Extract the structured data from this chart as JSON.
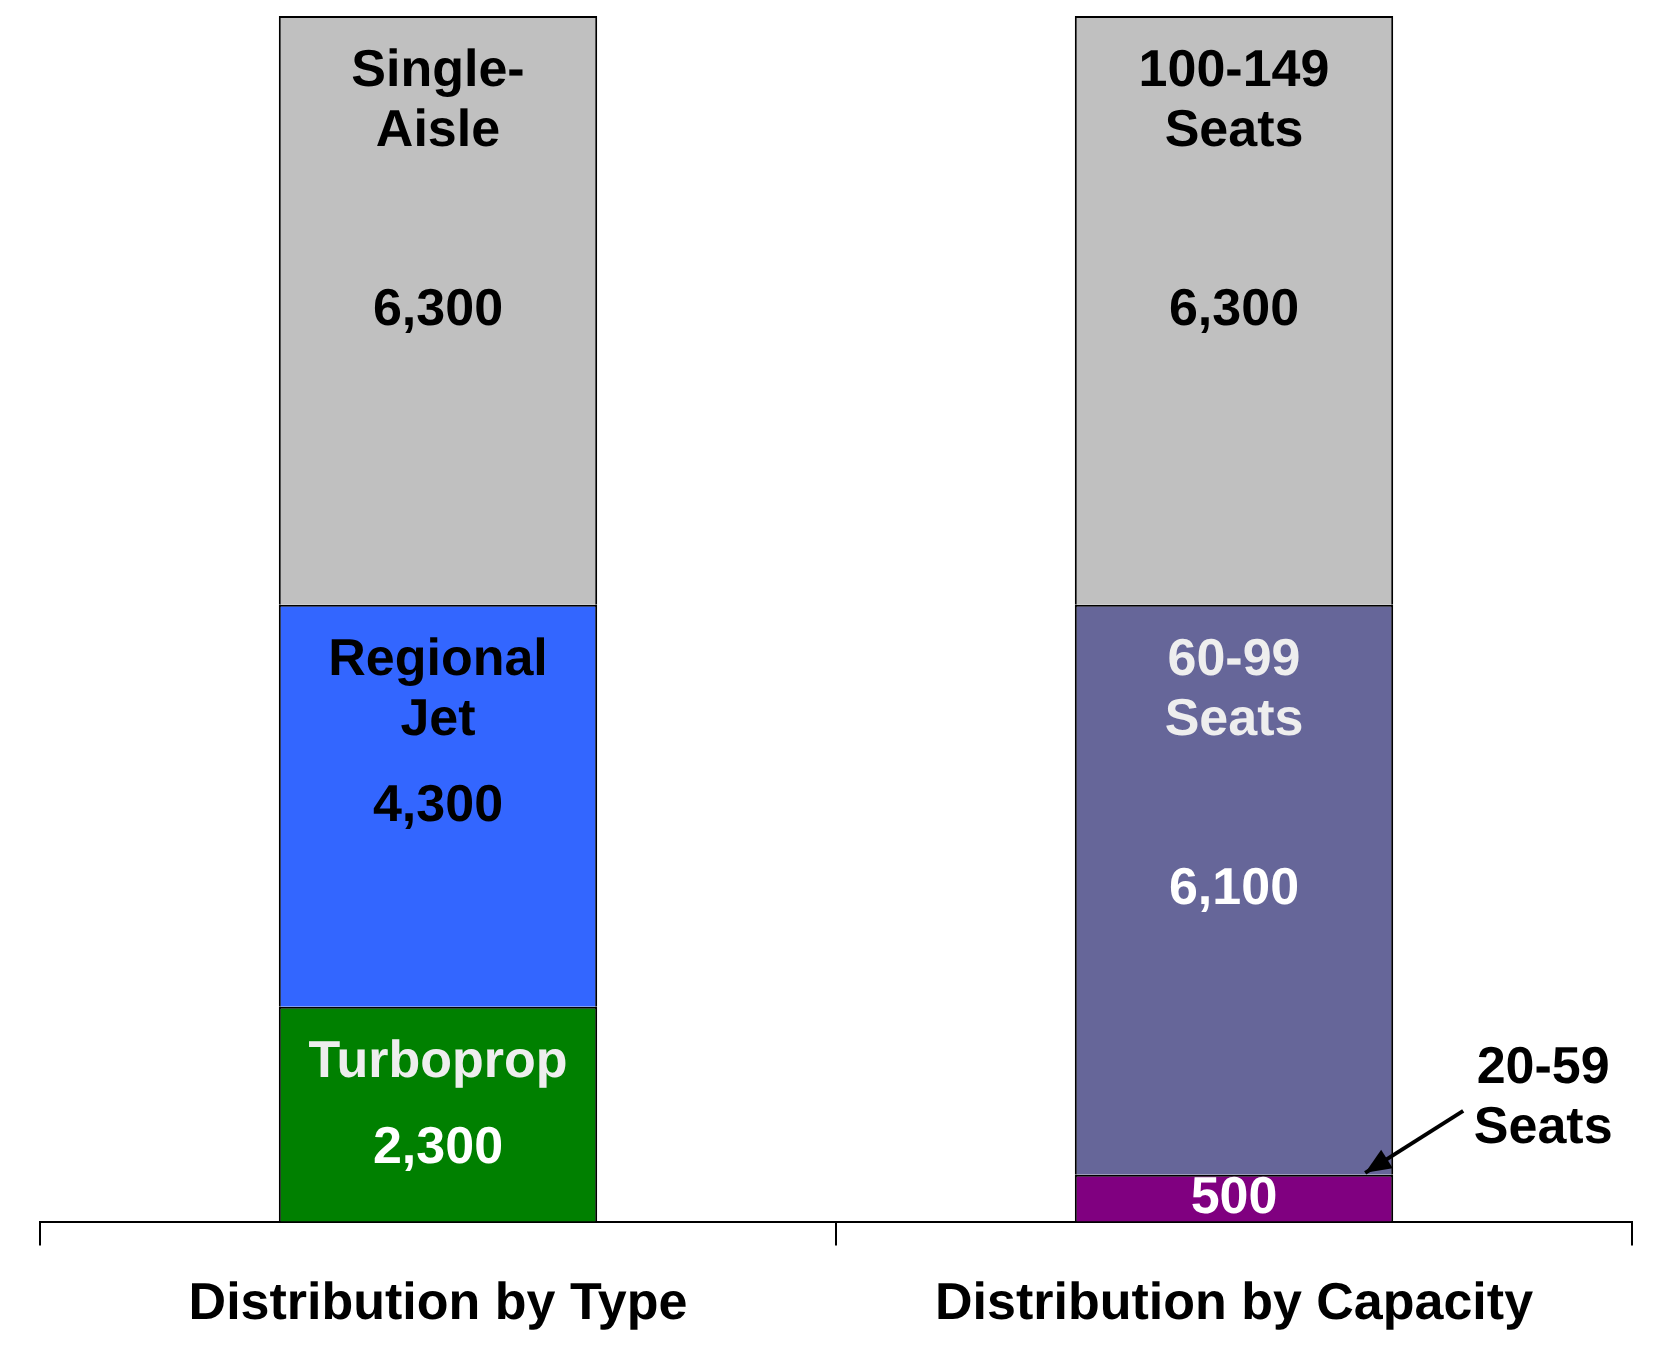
{
  "chart_data": {
    "type": "bar",
    "stacked": true,
    "categories": [
      "Distribution by Type",
      "Distribution by Capacity"
    ],
    "series": [
      {
        "colors": [
          "#008000",
          "#800080"
        ],
        "values": [
          2300,
          500
        ],
        "value_labels": [
          "2,300",
          "500"
        ]
      },
      {
        "colors": [
          "#3366ff",
          "#666699"
        ],
        "values": [
          4300,
          6100
        ],
        "value_labels": [
          "4,300",
          "6,100"
        ]
      },
      {
        "colors": [
          "#c0c0c0",
          "#c0c0c0"
        ],
        "values": [
          6300,
          6300
        ],
        "value_labels": [
          "6,300",
          "6,300"
        ]
      }
    ],
    "legend": false,
    "grid": false,
    "annotations": [
      "Turboprop",
      "Regional Jet",
      "Single-Aisle",
      "20-59 Seats",
      "60-99 Seats",
      "100-149 Seats"
    ]
  }
}
